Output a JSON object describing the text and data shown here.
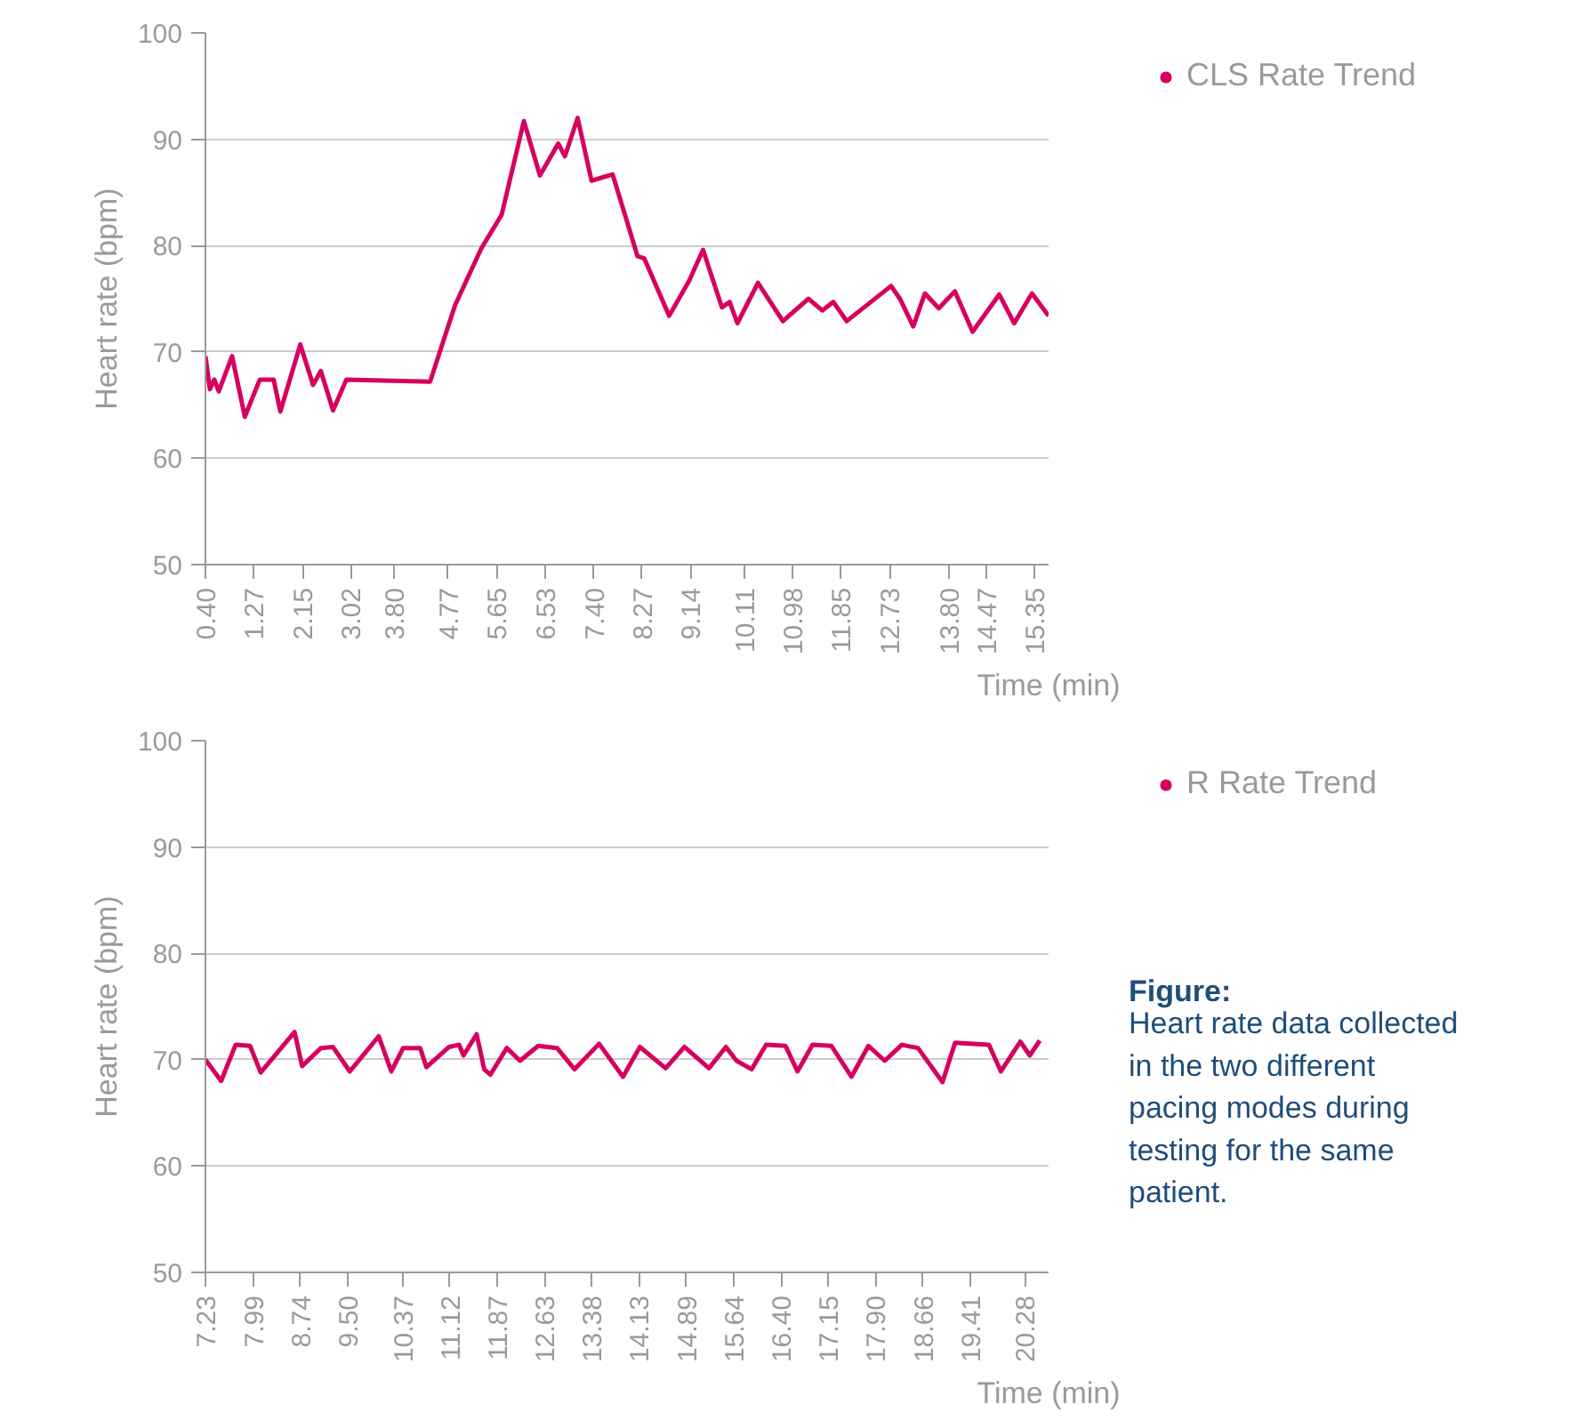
{
  "chart_data": [
    {
      "type": "line",
      "ylabel": "Heart rate (bpm)",
      "xlabel": "Time (min)",
      "xlim": [
        0.4,
        15.6
      ],
      "ylim": [
        50,
        100
      ],
      "yticks": [
        50,
        60,
        70,
        80,
        90,
        100
      ],
      "xticks": [
        {
          "value": 0.4,
          "label": "0.40"
        },
        {
          "value": 1.27,
          "label": "1.27"
        },
        {
          "value": 2.15,
          "label": "2.15"
        },
        {
          "value": 3.02,
          "label": "3.02"
        },
        {
          "value": 3.8,
          "label": "3.80"
        },
        {
          "value": 4.77,
          "label": "4.77"
        },
        {
          "value": 5.65,
          "label": "5.65"
        },
        {
          "value": 6.53,
          "label": "6.53"
        },
        {
          "value": 7.4,
          "label": "7.40"
        },
        {
          "value": 8.27,
          "label": "8.27"
        },
        {
          "value": 9.14,
          "label": "9.14"
        },
        {
          "value": 10.11,
          "label": "10.11"
        },
        {
          "value": 10.98,
          "label": "10.98"
        },
        {
          "value": 11.85,
          "label": "11.85"
        },
        {
          "value": 12.73,
          "label": "12.73"
        },
        {
          "value": 13.8,
          "label": "13.80"
        },
        {
          "value": 14.47,
          "label": "14.47"
        },
        {
          "value": 15.35,
          "label": "15.35"
        }
      ],
      "grid": "y",
      "legend": "right",
      "line_style": "solid",
      "series": [
        {
          "name": "CLS Rate Trend",
          "color": "#d6005f",
          "x": [
            0.4,
            0.48,
            0.56,
            0.64,
            0.88,
            1.11,
            1.38,
            1.63,
            1.75,
            2.11,
            2.34,
            2.48,
            2.7,
            2.94,
            4.45,
            4.9,
            5.37,
            5.74,
            6.14,
            6.43,
            6.76,
            6.88,
            7.11,
            7.36,
            7.74,
            8.19,
            8.31,
            8.76,
            9.12,
            9.37,
            9.71,
            9.85,
            9.99,
            10.36,
            10.81,
            11.27,
            11.52,
            11.72,
            11.96,
            12.76,
            12.92,
            13.16,
            13.37,
            13.62,
            13.91,
            14.23,
            14.71,
            14.98,
            15.3,
            15.6
          ],
          "values": [
            69.6,
            66.5,
            67.4,
            66.3,
            69.6,
            63.9,
            67.4,
            67.4,
            64.4,
            70.7,
            66.9,
            68.2,
            64.5,
            67.4,
            67.2,
            74.4,
            79.7,
            82.9,
            91.7,
            86.6,
            89.6,
            88.4,
            92.0,
            86.1,
            86.7,
            79.0,
            78.8,
            73.4,
            76.7,
            79.6,
            74.2,
            74.7,
            72.7,
            76.5,
            72.9,
            75.0,
            73.9,
            74.7,
            72.9,
            76.2,
            75.0,
            72.4,
            75.5,
            74.1,
            75.7,
            71.9,
            75.4,
            72.7,
            75.5,
            73.4
          ]
        }
      ]
    },
    {
      "type": "line",
      "ylabel": "Heart rate (bpm)",
      "xlabel": "Time (min)",
      "xlim": [
        7.23,
        20.66
      ],
      "ylim": [
        50,
        100
      ],
      "yticks": [
        50,
        60,
        70,
        80,
        90,
        100
      ],
      "xticks": [
        {
          "value": 7.23,
          "label": "7.23"
        },
        {
          "value": 7.99,
          "label": "7.99"
        },
        {
          "value": 8.74,
          "label": "8.74"
        },
        {
          "value": 9.5,
          "label": "9.50"
        },
        {
          "value": 10.37,
          "label": "10.37"
        },
        {
          "value": 11.12,
          "label": "11.12"
        },
        {
          "value": 11.87,
          "label": "11.87"
        },
        {
          "value": 12.63,
          "label": "12.63"
        },
        {
          "value": 13.38,
          "label": "13.38"
        },
        {
          "value": 14.13,
          "label": "14.13"
        },
        {
          "value": 14.89,
          "label": "14.89"
        },
        {
          "value": 15.64,
          "label": "15.64"
        },
        {
          "value": 16.4,
          "label": "16.40"
        },
        {
          "value": 17.15,
          "label": "17.15"
        },
        {
          "value": 17.9,
          "label": "17.90"
        },
        {
          "value": 18.66,
          "label": "18.66"
        },
        {
          "value": 19.41,
          "label": "19.41"
        },
        {
          "value": 20.28,
          "label": "20.28"
        }
      ],
      "grid": "y",
      "legend": "right",
      "line_style": "solid",
      "annotations": [
        "Figure:",
        "Heart rate data collected in the two different pacing modes during testing for the same patient."
      ],
      "series": [
        {
          "name": "R Rate Trend",
          "color": "#d6005f",
          "x": [
            7.23,
            7.48,
            7.71,
            7.94,
            8.11,
            8.65,
            8.77,
            9.07,
            9.26,
            9.53,
            9.99,
            10.19,
            10.38,
            10.65,
            10.75,
            11.11,
            11.27,
            11.34,
            11.55,
            11.67,
            11.77,
            12.03,
            12.24,
            12.53,
            12.83,
            13.11,
            13.5,
            13.88,
            14.15,
            14.56,
            14.86,
            15.25,
            15.52,
            15.69,
            15.93,
            16.16,
            16.47,
            16.66,
            16.9,
            17.2,
            17.52,
            17.79,
            18.05,
            18.32,
            18.58,
            18.97,
            19.17,
            19.71,
            19.9,
            20.21,
            20.36,
            20.52
          ],
          "values": [
            70.0,
            68.0,
            71.4,
            71.3,
            68.8,
            72.6,
            69.4,
            71.1,
            71.2,
            68.9,
            72.2,
            68.9,
            71.1,
            71.1,
            69.3,
            71.2,
            71.4,
            70.4,
            72.4,
            69.1,
            68.6,
            71.1,
            69.9,
            71.3,
            71.1,
            69.1,
            71.5,
            68.4,
            71.2,
            69.2,
            71.2,
            69.2,
            71.2,
            69.9,
            69.1,
            71.4,
            71.3,
            68.9,
            71.4,
            71.3,
            68.4,
            71.3,
            69.9,
            71.4,
            71.1,
            67.9,
            71.6,
            71.4,
            68.9,
            71.7,
            70.4,
            71.8
          ]
        }
      ]
    }
  ]
}
